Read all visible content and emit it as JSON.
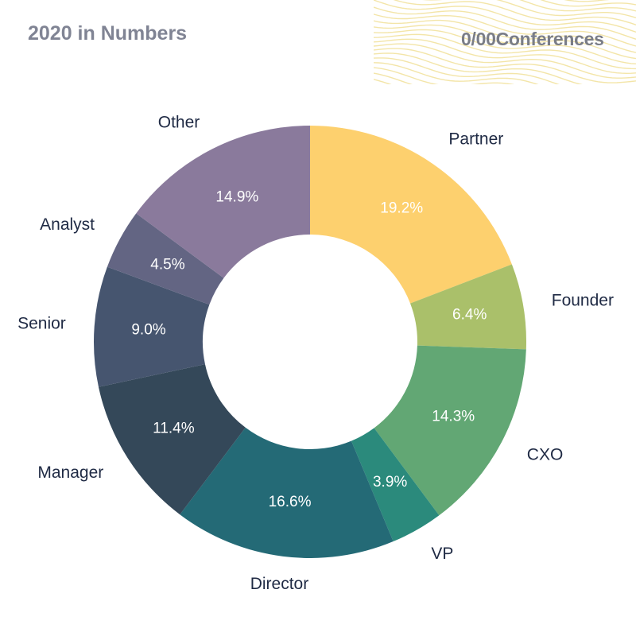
{
  "header": {
    "title": "2020 in Numbers",
    "brand": "0/00Conferences"
  },
  "colors": {
    "title": "#808494",
    "brand": "#7a7d87",
    "wave": "#f3e5a8",
    "label": "#1f2a44",
    "value": "#ffffff"
  },
  "chart_data": {
    "type": "pie",
    "donut": true,
    "title": "",
    "start": "top, clockwise",
    "slices": [
      {
        "label": "Partner",
        "value": 19.2,
        "display": "19.2%",
        "color": "#fdd06e"
      },
      {
        "label": "Founder",
        "value": 6.4,
        "display": "6.4%",
        "color": "#aac06a"
      },
      {
        "label": "CXO",
        "value": 14.3,
        "display": "14.3%",
        "color": "#62a774"
      },
      {
        "label": "VP",
        "value": 3.9,
        "display": "3.9%",
        "color": "#2b8a7c"
      },
      {
        "label": "Director",
        "value": 16.6,
        "display": "16.6%",
        "color": "#246a76"
      },
      {
        "label": "Manager",
        "value": 11.4,
        "display": "11.4%",
        "color": "#344859"
      },
      {
        "label": "Senior",
        "value": 9.0,
        "display": "9.0%",
        "color": "#46556f"
      },
      {
        "label": "Analyst",
        "value": 4.5,
        "display": "4.5%",
        "color": "#636583"
      },
      {
        "label": "Other",
        "value": 14.9,
        "display": "14.9%",
        "color": "#8a7a9c"
      }
    ]
  }
}
